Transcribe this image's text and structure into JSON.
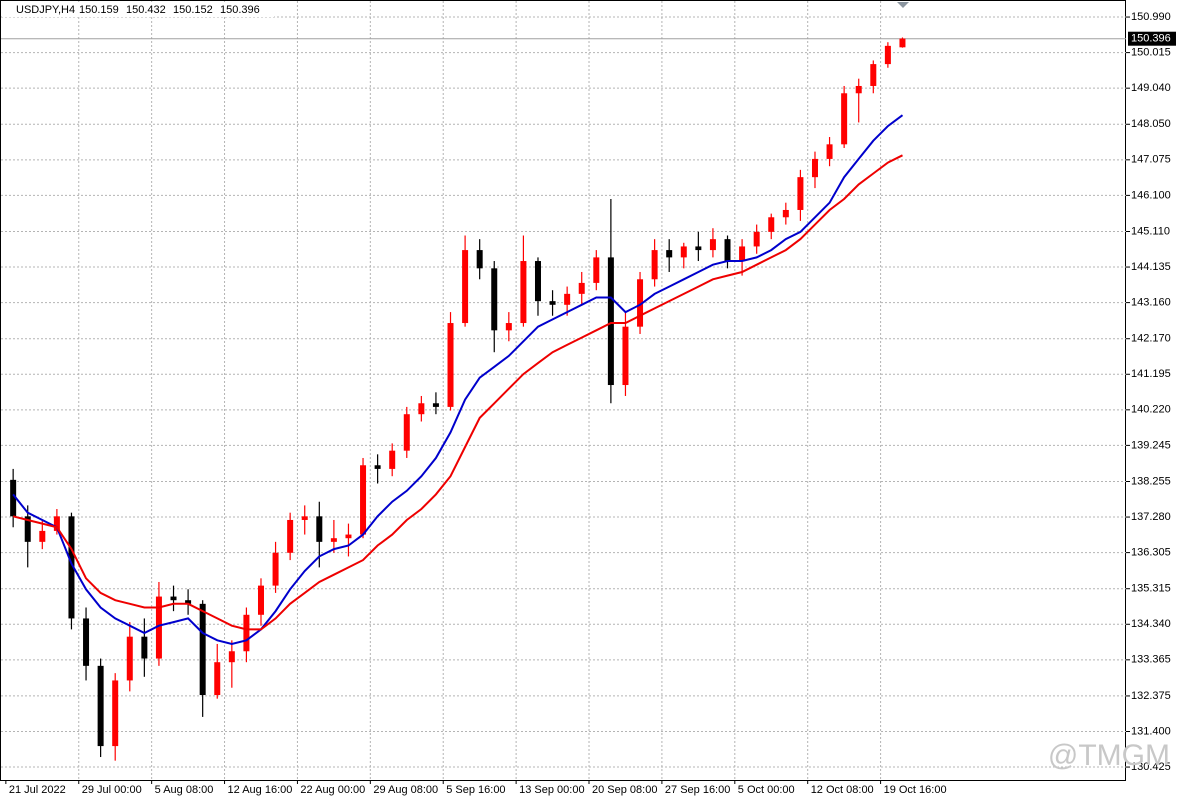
{
  "chart_data": {
    "type": "candlestick",
    "title": "USDJPY,H4",
    "header_ohlc": [
      150.159,
      150.432,
      150.152,
      150.396
    ],
    "last_price": 150.396,
    "watermark": "@TMGM",
    "up_color": "#ff0000",
    "down_color": "#000000",
    "grid": true,
    "xlim": [
      -2,
      461
    ],
    "ylim": [
      130.07,
      151.43
    ],
    "xticks": [
      {
        "value": 0,
        "label": "21 Jul 2022"
      },
      {
        "value": 30,
        "label": "29 Jul 00:00"
      },
      {
        "value": 60,
        "label": "5 Aug 08:00"
      },
      {
        "value": 90,
        "label": "12 Aug 16:00"
      },
      {
        "value": 120,
        "label": "22 Aug 00:00"
      },
      {
        "value": 150,
        "label": "29 Aug 08:00"
      },
      {
        "value": 180,
        "label": "5 Sep 16:00"
      },
      {
        "value": 210,
        "label": "13 Sep 00:00"
      },
      {
        "value": 240,
        "label": "20 Sep 08:00"
      },
      {
        "value": 270,
        "label": "27 Sep 16:00"
      },
      {
        "value": 300,
        "label": "5 Oct 00:00"
      },
      {
        "value": 330,
        "label": "12 Oct 08:00"
      },
      {
        "value": 360,
        "label": "19 Oct 16:00"
      }
    ],
    "yticks": [
      {
        "value": 150.99,
        "label": "150.990"
      },
      150.015,
      {
        "value": 149.04,
        "label": "149.040"
      },
      {
        "value": 148.05,
        "label": "148.050"
      },
      147.075,
      {
        "value": 146.1,
        "label": "146.100"
      },
      {
        "value": 145.11,
        "label": "145.110"
      },
      144.135,
      {
        "value": 143.16,
        "label": "143.160"
      },
      {
        "value": 142.17,
        "label": "142.170"
      },
      141.195,
      {
        "value": 140.22,
        "label": "140.220"
      },
      139.245,
      138.255,
      {
        "value": 137.28,
        "label": "137.280"
      },
      136.305,
      135.315,
      {
        "value": 134.34,
        "label": "134.340"
      },
      133.365,
      132.375,
      {
        "value": 131.4,
        "label": "131.400"
      },
      130.425
    ],
    "x": [
      3,
      9,
      15,
      21,
      27,
      33,
      39,
      45,
      51,
      57,
      63,
      69,
      75,
      81,
      87,
      93,
      99,
      105,
      111,
      117,
      123,
      129,
      135,
      141,
      147,
      153,
      159,
      165,
      171,
      177,
      183,
      189,
      195,
      201,
      207,
      213,
      219,
      225,
      231,
      237,
      243,
      249,
      255,
      261,
      267,
      273,
      279,
      285,
      291,
      297,
      303,
      309,
      315,
      321,
      327,
      333,
      339,
      345,
      351,
      357,
      363,
      369
    ],
    "open": [
      138.3,
      137.3,
      136.6,
      136.9,
      137.3,
      134.5,
      133.2,
      131.0,
      132.8,
      134.0,
      133.4,
      135.1,
      135.0,
      134.9,
      132.4,
      133.3,
      133.6,
      134.6,
      135.4,
      136.3,
      137.2,
      137.3,
      136.6,
      136.7,
      136.8,
      138.7,
      138.6,
      139.1,
      140.1,
      140.4,
      140.3,
      142.6,
      144.6,
      144.1,
      142.4,
      142.6,
      144.3,
      143.2,
      143.1,
      143.4,
      143.7,
      144.4,
      140.9,
      142.5,
      143.8,
      144.6,
      144.4,
      144.7,
      144.6,
      144.9,
      144.3,
      144.7,
      145.1,
      145.5,
      145.7,
      146.6,
      147.1,
      147.5,
      148.9,
      149.1,
      149.7,
      150.16
    ],
    "high": [
      138.6,
      137.6,
      137.2,
      137.5,
      137.4,
      134.8,
      133.4,
      133.0,
      134.4,
      134.5,
      135.5,
      135.4,
      135.3,
      135.0,
      133.8,
      133.9,
      134.8,
      135.6,
      136.6,
      137.4,
      137.6,
      137.7,
      137.2,
      137.1,
      138.9,
      139.0,
      139.3,
      140.3,
      140.6,
      140.7,
      142.9,
      145.0,
      144.9,
      144.3,
      142.9,
      145.0,
      144.4,
      143.5,
      143.6,
      144.0,
      144.6,
      146.0,
      142.9,
      144.0,
      144.9,
      144.9,
      144.8,
      145.1,
      145.2,
      145.0,
      144.9,
      145.3,
      145.6,
      145.9,
      146.8,
      147.3,
      147.7,
      149.1,
      149.3,
      149.8,
      150.3,
      150.43
    ],
    "low": [
      137.0,
      135.9,
      136.4,
      136.8,
      134.2,
      132.8,
      130.7,
      130.6,
      132.5,
      132.9,
      133.2,
      134.7,
      134.6,
      131.8,
      132.3,
      132.6,
      133.3,
      134.3,
      135.2,
      136.1,
      136.8,
      135.9,
      136.3,
      136.2,
      136.7,
      138.2,
      138.4,
      138.9,
      139.9,
      140.1,
      140.2,
      142.5,
      143.8,
      141.8,
      142.1,
      142.5,
      142.8,
      142.8,
      142.8,
      143.1,
      143.5,
      140.4,
      140.6,
      142.3,
      143.6,
      144.0,
      144.1,
      144.3,
      144.4,
      144.1,
      143.9,
      144.5,
      144.9,
      145.3,
      145.4,
      146.3,
      146.9,
      147.4,
      148.1,
      148.9,
      149.6,
      150.15
    ],
    "close": [
      137.3,
      136.6,
      136.9,
      137.3,
      134.5,
      133.2,
      131.0,
      132.8,
      134.0,
      133.4,
      135.1,
      135.0,
      134.9,
      132.4,
      133.3,
      133.6,
      134.6,
      135.4,
      136.3,
      137.2,
      137.3,
      136.6,
      136.7,
      136.8,
      138.7,
      138.6,
      139.1,
      140.1,
      140.4,
      140.3,
      142.6,
      144.6,
      144.1,
      142.4,
      142.6,
      144.3,
      143.2,
      143.1,
      143.4,
      143.7,
      144.4,
      140.9,
      142.5,
      143.8,
      144.6,
      144.4,
      144.7,
      144.6,
      144.9,
      144.3,
      144.7,
      145.1,
      145.5,
      145.7,
      146.6,
      147.1,
      147.5,
      148.9,
      149.1,
      149.7,
      150.2,
      150.4
    ],
    "lines": [
      {
        "color": "#0000cc",
        "values": [
          137.9,
          137.4,
          137.2,
          137.0,
          136.0,
          135.3,
          134.8,
          134.5,
          134.3,
          134.1,
          134.3,
          134.4,
          134.5,
          134.1,
          133.9,
          133.8,
          133.9,
          134.2,
          134.7,
          135.3,
          135.8,
          136.2,
          136.4,
          136.5,
          136.8,
          137.3,
          137.7,
          138.0,
          138.4,
          138.9,
          139.6,
          140.5,
          141.1,
          141.4,
          141.7,
          142.1,
          142.5,
          142.7,
          142.9,
          143.1,
          143.3,
          143.3,
          142.9,
          143.1,
          143.4,
          143.6,
          143.8,
          144.0,
          144.2,
          144.3,
          144.3,
          144.4,
          144.6,
          144.9,
          145.1,
          145.5,
          145.9,
          146.6,
          147.1,
          147.6,
          148.0,
          148.3
        ]
      },
      {
        "color": "#ee0000",
        "values": [
          137.3,
          137.2,
          137.1,
          137.0,
          136.4,
          135.6,
          135.2,
          135.0,
          134.9,
          134.8,
          134.8,
          134.9,
          134.9,
          134.7,
          134.5,
          134.3,
          134.2,
          134.2,
          134.5,
          134.9,
          135.2,
          135.5,
          135.7,
          135.9,
          136.1,
          136.5,
          136.8,
          137.2,
          137.5,
          137.9,
          138.4,
          139.2,
          140.0,
          140.4,
          140.8,
          141.2,
          141.5,
          141.8,
          142.0,
          142.2,
          142.4,
          142.6,
          142.6,
          142.8,
          143.0,
          143.2,
          143.4,
          143.6,
          143.8,
          143.9,
          144.0,
          144.2,
          144.4,
          144.6,
          144.9,
          145.3,
          145.7,
          146.0,
          146.4,
          146.7,
          147.0,
          147.2
        ]
      }
    ]
  }
}
